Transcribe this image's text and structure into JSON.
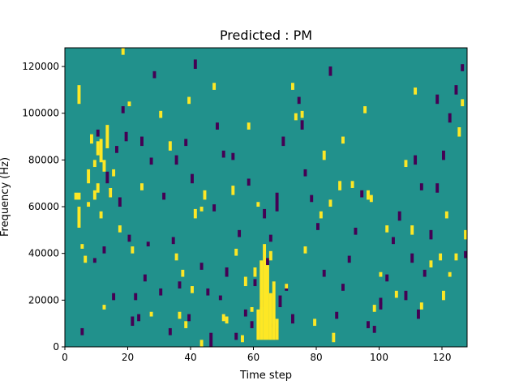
{
  "chart_data": {
    "type": "heatmap",
    "title": "Predicted : PM",
    "xlabel": "Time step",
    "ylabel": "Frequency (Hz)",
    "xlim": [
      0,
      128
    ],
    "ylim": [
      0,
      128000
    ],
    "x_ticks": [
      0,
      20,
      40,
      60,
      80,
      100,
      120
    ],
    "y_ticks": [
      0,
      20000,
      40000,
      60000,
      80000,
      100000,
      120000
    ],
    "n_time_steps": 128,
    "n_freq_bins": 128,
    "bin_hz": 1000,
    "colors": {
      "background": "#21918c",
      "high": "#fde725",
      "low": "#440154"
    },
    "grid": false,
    "legend": "none",
    "high_cells": [
      [
        3,
        63,
        66
      ],
      [
        4,
        63,
        66
      ],
      [
        4,
        51,
        60
      ],
      [
        4,
        104,
        112
      ],
      [
        5,
        42,
        44
      ],
      [
        6,
        36,
        39
      ],
      [
        7,
        60,
        62
      ],
      [
        7,
        70,
        76
      ],
      [
        8,
        87,
        91
      ],
      [
        9,
        77,
        80
      ],
      [
        9,
        63,
        67
      ],
      [
        10,
        82,
        88
      ],
      [
        10,
        66,
        70
      ],
      [
        11,
        79,
        89
      ],
      [
        11,
        55,
        58
      ],
      [
        12,
        75,
        80
      ],
      [
        12,
        16,
        18
      ],
      [
        13,
        85,
        95
      ],
      [
        14,
        64,
        68
      ],
      [
        15,
        73,
        76
      ],
      [
        17,
        49,
        52
      ],
      [
        18,
        125,
        128
      ],
      [
        20,
        103,
        105
      ],
      [
        21,
        40,
        43
      ],
      [
        24,
        67,
        70
      ],
      [
        27,
        13,
        15
      ],
      [
        30,
        98,
        101
      ],
      [
        33,
        84,
        88
      ],
      [
        35,
        37,
        40
      ],
      [
        36,
        12,
        15
      ],
      [
        37,
        30,
        33
      ],
      [
        38,
        8,
        11
      ],
      [
        39,
        104,
        107
      ],
      [
        40,
        23,
        26
      ],
      [
        41,
        55,
        59
      ],
      [
        43,
        58,
        60
      ],
      [
        43,
        0,
        3
      ],
      [
        44,
        63,
        67
      ],
      [
        47,
        110,
        113
      ],
      [
        50,
        11,
        14
      ],
      [
        51,
        10,
        13
      ],
      [
        53,
        65,
        69
      ],
      [
        54,
        39,
        42
      ],
      [
        56,
        2,
        5
      ],
      [
        57,
        26,
        30
      ],
      [
        58,
        93,
        96
      ],
      [
        59,
        15,
        17
      ],
      [
        60,
        30,
        34
      ],
      [
        61,
        3,
        16
      ],
      [
        61,
        60,
        62
      ],
      [
        62,
        3,
        37
      ],
      [
        63,
        3,
        44
      ],
      [
        64,
        3,
        35
      ],
      [
        65,
        3,
        23
      ],
      [
        65,
        37,
        41
      ],
      [
        66,
        3,
        28
      ],
      [
        67,
        3,
        12
      ],
      [
        70,
        25,
        27
      ],
      [
        72,
        110,
        113
      ],
      [
        73,
        97,
        100
      ],
      [
        75,
        98,
        101
      ],
      [
        76,
        40,
        43
      ],
      [
        79,
        9,
        12
      ],
      [
        81,
        55,
        58
      ],
      [
        82,
        80,
        84
      ],
      [
        84,
        60,
        63
      ],
      [
        85,
        2,
        6
      ],
      [
        87,
        67,
        71
      ],
      [
        88,
        87,
        90
      ],
      [
        91,
        68,
        71
      ],
      [
        95,
        100,
        103
      ],
      [
        96,
        63,
        67
      ],
      [
        97,
        62,
        65
      ],
      [
        98,
        15,
        18
      ],
      [
        100,
        30,
        32
      ],
      [
        102,
        49,
        52
      ],
      [
        105,
        21,
        24
      ],
      [
        108,
        77,
        80
      ],
      [
        110,
        48,
        52
      ],
      [
        111,
        108,
        111
      ],
      [
        113,
        16,
        19
      ],
      [
        116,
        34,
        37
      ],
      [
        119,
        37,
        40
      ],
      [
        120,
        20,
        24
      ],
      [
        121,
        55,
        58
      ],
      [
        122,
        30,
        32
      ],
      [
        124,
        37,
        40
      ],
      [
        125,
        90,
        94
      ],
      [
        126,
        103,
        106
      ],
      [
        127,
        46,
        50
      ]
    ],
    "low_cells": [
      [
        5,
        5,
        8
      ],
      [
        9,
        36,
        38
      ],
      [
        10,
        90,
        93
      ],
      [
        12,
        40,
        43
      ],
      [
        13,
        70,
        75
      ],
      [
        14,
        64,
        67
      ],
      [
        15,
        20,
        23
      ],
      [
        16,
        83,
        86
      ],
      [
        17,
        60,
        64
      ],
      [
        18,
        100,
        103
      ],
      [
        19,
        88,
        92
      ],
      [
        20,
        45,
        48
      ],
      [
        21,
        9,
        13
      ],
      [
        22,
        20,
        23
      ],
      [
        23,
        11,
        14
      ],
      [
        24,
        86,
        90
      ],
      [
        25,
        28,
        31
      ],
      [
        26,
        43,
        45
      ],
      [
        27,
        78,
        81
      ],
      [
        28,
        115,
        118
      ],
      [
        30,
        22,
        25
      ],
      [
        31,
        63,
        66
      ],
      [
        33,
        5,
        8
      ],
      [
        34,
        44,
        47
      ],
      [
        35,
        78,
        82
      ],
      [
        36,
        25,
        28
      ],
      [
        38,
        86,
        89
      ],
      [
        39,
        11,
        14
      ],
      [
        40,
        70,
        74
      ],
      [
        41,
        119,
        123
      ],
      [
        43,
        33,
        36
      ],
      [
        45,
        22,
        25
      ],
      [
        46,
        0,
        6
      ],
      [
        47,
        58,
        61
      ],
      [
        48,
        93,
        96
      ],
      [
        49,
        20,
        22
      ],
      [
        50,
        81,
        84
      ],
      [
        51,
        30,
        34
      ],
      [
        53,
        80,
        83
      ],
      [
        54,
        3,
        6
      ],
      [
        55,
        47,
        50
      ],
      [
        57,
        13,
        16
      ],
      [
        58,
        69,
        72
      ],
      [
        59,
        8,
        11
      ],
      [
        60,
        26,
        29
      ],
      [
        62,
        17,
        20
      ],
      [
        63,
        55,
        59
      ],
      [
        64,
        35,
        38
      ],
      [
        65,
        45,
        48
      ],
      [
        66,
        8,
        10
      ],
      [
        67,
        3,
        8
      ],
      [
        67,
        58,
        66
      ],
      [
        68,
        17,
        22
      ],
      [
        69,
        86,
        90
      ],
      [
        70,
        24,
        27
      ],
      [
        72,
        10,
        14
      ],
      [
        74,
        104,
        107
      ],
      [
        75,
        93,
        97
      ],
      [
        76,
        73,
        76
      ],
      [
        78,
        62,
        65
      ],
      [
        80,
        50,
        53
      ],
      [
        82,
        30,
        33
      ],
      [
        84,
        116,
        120
      ],
      [
        86,
        12,
        15
      ],
      [
        88,
        24,
        27
      ],
      [
        90,
        36,
        39
      ],
      [
        92,
        48,
        51
      ],
      [
        94,
        64,
        67
      ],
      [
        96,
        8,
        11
      ],
      [
        98,
        6,
        9
      ],
      [
        100,
        18,
        21
      ],
      [
        102,
        28,
        31
      ],
      [
        104,
        44,
        47
      ],
      [
        106,
        54,
        58
      ],
      [
        108,
        20,
        24
      ],
      [
        110,
        36,
        40
      ],
      [
        112,
        12,
        16
      ],
      [
        114,
        30,
        33
      ],
      [
        116,
        46,
        50
      ],
      [
        118,
        66,
        70
      ],
      [
        120,
        80,
        84
      ],
      [
        122,
        96,
        100
      ],
      [
        124,
        108,
        112
      ],
      [
        126,
        118,
        121
      ],
      [
        127,
        38,
        41
      ],
      [
        100,
        16,
        19
      ],
      [
        111,
        78,
        82
      ],
      [
        113,
        67,
        70
      ],
      [
        118,
        104,
        108
      ]
    ]
  }
}
